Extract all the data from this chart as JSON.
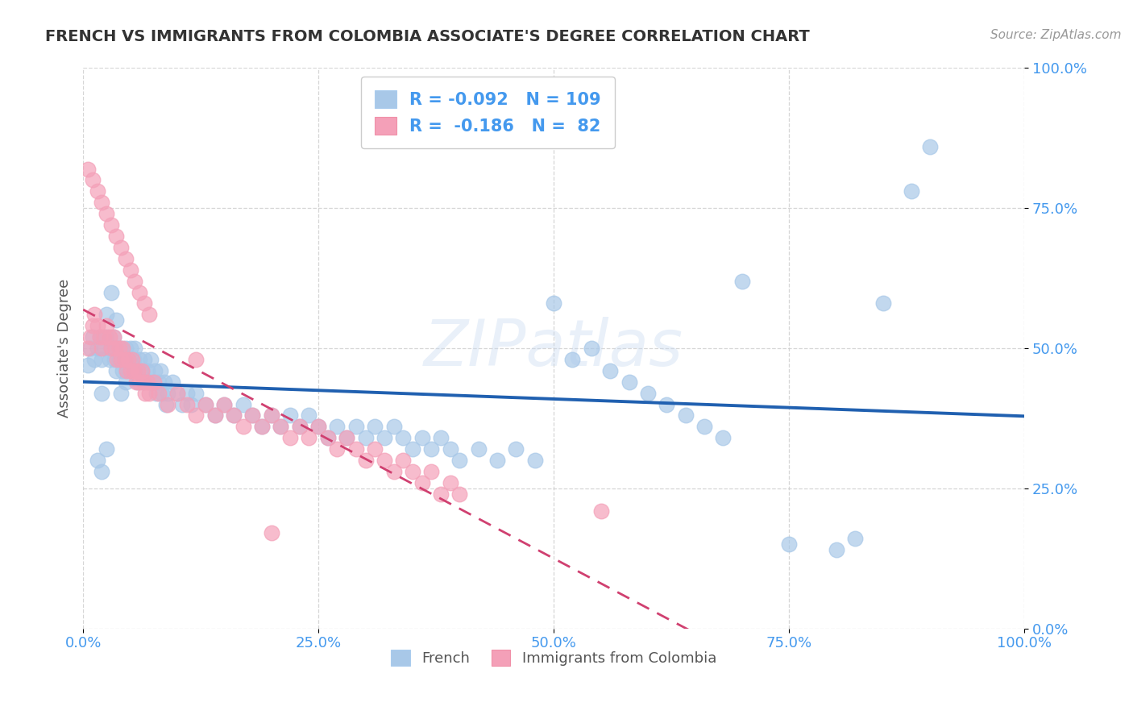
{
  "title": "FRENCH VS IMMIGRANTS FROM COLOMBIA ASSOCIATE'S DEGREE CORRELATION CHART",
  "source": "Source: ZipAtlas.com",
  "ylabel": "Associate's Degree",
  "xlim": [
    0.0,
    1.0
  ],
  "ylim": [
    0.0,
    1.0
  ],
  "xticks": [
    0.0,
    0.25,
    0.5,
    0.75,
    1.0
  ],
  "yticks": [
    0.0,
    0.25,
    0.5,
    0.75,
    1.0
  ],
  "legend_labels": [
    "French",
    "Immigrants from Colombia"
  ],
  "series1_color": "#a8c8e8",
  "series2_color": "#f4a0b8",
  "series1_line_color": "#2060b0",
  "series2_line_color": "#d04070",
  "watermark": "ZIPatlas",
  "R1": -0.092,
  "N1": 109,
  "R2": -0.186,
  "N2": 82,
  "series1_x": [
    0.005,
    0.008,
    0.01,
    0.012,
    0.015,
    0.018,
    0.02,
    0.022,
    0.025,
    0.028,
    0.03,
    0.032,
    0.033,
    0.035,
    0.036,
    0.038,
    0.04,
    0.042,
    0.044,
    0.045,
    0.046,
    0.048,
    0.05,
    0.052,
    0.054,
    0.055,
    0.056,
    0.058,
    0.06,
    0.062,
    0.064,
    0.065,
    0.068,
    0.07,
    0.072,
    0.074,
    0.076,
    0.078,
    0.08,
    0.082,
    0.084,
    0.086,
    0.088,
    0.09,
    0.095,
    0.1,
    0.105,
    0.11,
    0.115,
    0.12,
    0.13,
    0.14,
    0.15,
    0.16,
    0.17,
    0.18,
    0.19,
    0.2,
    0.21,
    0.22,
    0.23,
    0.24,
    0.25,
    0.26,
    0.27,
    0.28,
    0.29,
    0.3,
    0.31,
    0.32,
    0.33,
    0.34,
    0.35,
    0.36,
    0.37,
    0.38,
    0.39,
    0.4,
    0.42,
    0.44,
    0.46,
    0.48,
    0.5,
    0.52,
    0.54,
    0.56,
    0.58,
    0.6,
    0.62,
    0.64,
    0.66,
    0.68,
    0.7,
    0.75,
    0.8,
    0.82,
    0.85,
    0.88,
    0.9,
    0.02,
    0.025,
    0.03,
    0.035,
    0.04,
    0.045,
    0.05,
    0.015,
    0.02,
    0.025
  ],
  "series1_y": [
    0.47,
    0.5,
    0.52,
    0.48,
    0.5,
    0.52,
    0.48,
    0.5,
    0.52,
    0.48,
    0.5,
    0.52,
    0.48,
    0.46,
    0.5,
    0.48,
    0.5,
    0.46,
    0.48,
    0.5,
    0.46,
    0.48,
    0.5,
    0.46,
    0.48,
    0.5,
    0.46,
    0.44,
    0.48,
    0.46,
    0.44,
    0.48,
    0.46,
    0.44,
    0.48,
    0.44,
    0.46,
    0.42,
    0.44,
    0.46,
    0.42,
    0.44,
    0.4,
    0.42,
    0.44,
    0.42,
    0.4,
    0.42,
    0.4,
    0.42,
    0.4,
    0.38,
    0.4,
    0.38,
    0.4,
    0.38,
    0.36,
    0.38,
    0.36,
    0.38,
    0.36,
    0.38,
    0.36,
    0.34,
    0.36,
    0.34,
    0.36,
    0.34,
    0.36,
    0.34,
    0.36,
    0.34,
    0.32,
    0.34,
    0.32,
    0.34,
    0.32,
    0.3,
    0.32,
    0.3,
    0.32,
    0.3,
    0.58,
    0.48,
    0.5,
    0.46,
    0.44,
    0.42,
    0.4,
    0.38,
    0.36,
    0.34,
    0.62,
    0.15,
    0.14,
    0.16,
    0.58,
    0.78,
    0.86,
    0.42,
    0.56,
    0.6,
    0.55,
    0.42,
    0.44,
    0.46,
    0.3,
    0.28,
    0.32
  ],
  "series2_x": [
    0.005,
    0.008,
    0.01,
    0.012,
    0.015,
    0.018,
    0.02,
    0.022,
    0.025,
    0.028,
    0.03,
    0.032,
    0.034,
    0.036,
    0.038,
    0.04,
    0.042,
    0.044,
    0.046,
    0.048,
    0.05,
    0.052,
    0.054,
    0.056,
    0.058,
    0.06,
    0.062,
    0.064,
    0.066,
    0.068,
    0.07,
    0.075,
    0.08,
    0.09,
    0.1,
    0.11,
    0.12,
    0.13,
    0.14,
    0.15,
    0.16,
    0.17,
    0.18,
    0.19,
    0.2,
    0.21,
    0.22,
    0.23,
    0.24,
    0.25,
    0.26,
    0.27,
    0.28,
    0.29,
    0.3,
    0.31,
    0.32,
    0.33,
    0.34,
    0.35,
    0.36,
    0.37,
    0.38,
    0.39,
    0.4,
    0.005,
    0.01,
    0.015,
    0.02,
    0.025,
    0.03,
    0.035,
    0.04,
    0.045,
    0.05,
    0.055,
    0.06,
    0.065,
    0.07,
    0.12,
    0.2,
    0.55
  ],
  "series2_y": [
    0.5,
    0.52,
    0.54,
    0.56,
    0.54,
    0.52,
    0.5,
    0.52,
    0.54,
    0.52,
    0.5,
    0.52,
    0.5,
    0.48,
    0.5,
    0.48,
    0.5,
    0.48,
    0.46,
    0.48,
    0.46,
    0.48,
    0.46,
    0.44,
    0.46,
    0.44,
    0.46,
    0.44,
    0.42,
    0.44,
    0.42,
    0.44,
    0.42,
    0.4,
    0.42,
    0.4,
    0.38,
    0.4,
    0.38,
    0.4,
    0.38,
    0.36,
    0.38,
    0.36,
    0.38,
    0.36,
    0.34,
    0.36,
    0.34,
    0.36,
    0.34,
    0.32,
    0.34,
    0.32,
    0.3,
    0.32,
    0.3,
    0.28,
    0.3,
    0.28,
    0.26,
    0.28,
    0.24,
    0.26,
    0.24,
    0.82,
    0.8,
    0.78,
    0.76,
    0.74,
    0.72,
    0.7,
    0.68,
    0.66,
    0.64,
    0.62,
    0.6,
    0.58,
    0.56,
    0.48,
    0.17,
    0.21
  ]
}
